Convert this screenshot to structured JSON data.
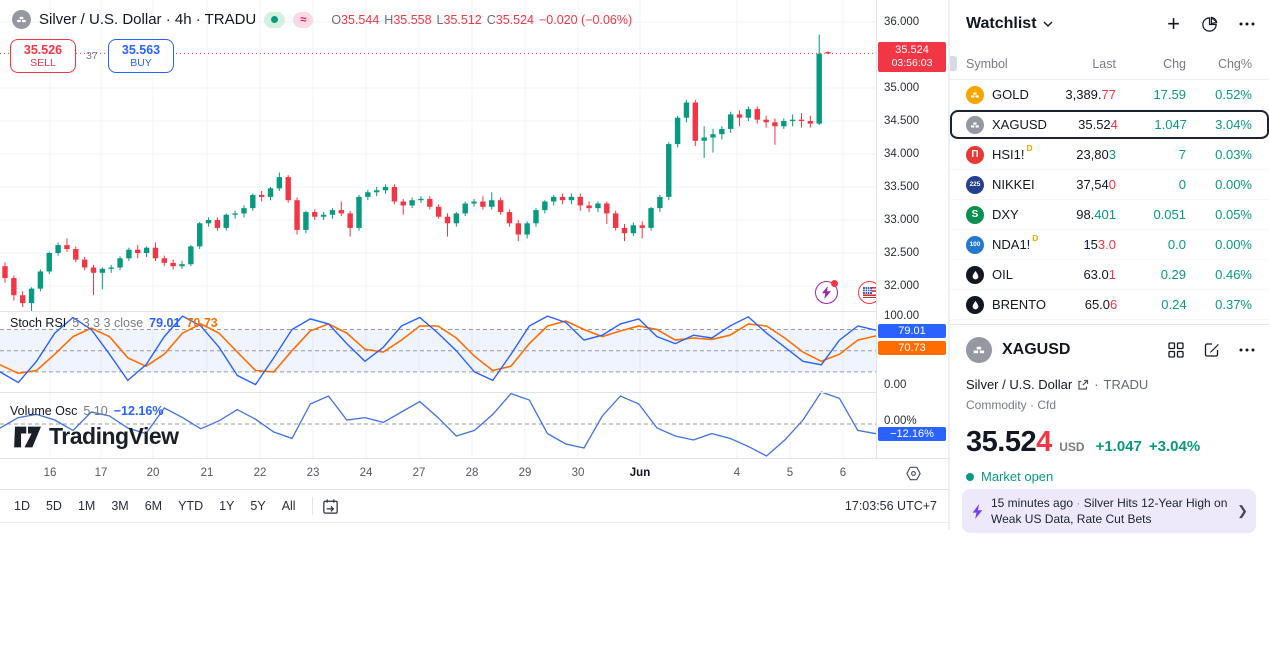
{
  "header": {
    "symbol_title": "Silver / U.S. Dollar · 4h · TRADU",
    "wave_pill": "≈",
    "ohlc": [
      {
        "label": "O",
        "value": "35.544"
      },
      {
        "label": "H",
        "value": "35.558"
      },
      {
        "label": "L",
        "value": "35.512"
      },
      {
        "label": "C",
        "value": "35.524"
      }
    ],
    "change": "−0.020 (−0.06%)"
  },
  "trade": {
    "sell_price": "35.526",
    "sell_label": "SELL",
    "spread": "37",
    "buy_price": "35.563",
    "buy_label": "BUY"
  },
  "indicators": {
    "stoch": {
      "name": "Stoch RSI",
      "params": "5 3 3 3 close",
      "k": "79.01",
      "d": "70.73"
    },
    "volume_osc": {
      "name": "Volume Osc",
      "params": "5 10",
      "value": "−12.16%"
    }
  },
  "price_axis": {
    "current_price": "35.524",
    "countdown": "03:56:03",
    "stoch_high": "100.00",
    "stoch_low": "0.00",
    "k_badge": "79.01",
    "d_badge": "70.73",
    "vol_zero": "0.00%",
    "vol_badge": "−12.16%"
  },
  "toolbar": {
    "ranges": [
      "1D",
      "5D",
      "1M",
      "3M",
      "6M",
      "YTD",
      "1Y",
      "5Y",
      "All"
    ],
    "clock": "17:03:56 UTC+7"
  },
  "watermark": "TradingView",
  "watchlist": {
    "title": "Watchlist",
    "columns": [
      "Symbol",
      "Last",
      "Chg",
      "Chg%"
    ],
    "rows": [
      {
        "symbol": "GOLD",
        "icon": "gold-bars-icon",
        "icon_color": "#f7a600",
        "d_badge": false,
        "last_main": "3,389.",
        "last_tick": "77",
        "tick_dir": "down",
        "chg": "17.59",
        "chg_pct": "0.52%",
        "selected": false
      },
      {
        "symbol": "XAGUSD",
        "icon": "silver-bars-icon",
        "icon_color": "#9598a1",
        "d_badge": false,
        "last_main": "35.52",
        "last_tick": "4",
        "tick_dir": "down",
        "chg": "1.047",
        "chg_pct": "3.04%",
        "selected": true
      },
      {
        "symbol": "HSI1!",
        "icon": "hsi-pillars-icon",
        "icon_color": "#e53935",
        "d_badge": true,
        "last_main": "23,80",
        "last_tick": "3",
        "tick_dir": "up",
        "chg": "7",
        "chg_pct": "0.03%",
        "selected": false
      },
      {
        "symbol": "NIKKEI",
        "icon": "nikkei-225-icon",
        "icon_color": "#24408e",
        "d_badge": false,
        "last_main": "37,54",
        "last_tick": "0",
        "tick_dir": "down",
        "chg": "0",
        "chg_pct": "0.00%",
        "selected": false
      },
      {
        "symbol": "DXY",
        "icon": "dxy-s-icon",
        "icon_color": "#0a9150",
        "d_badge": false,
        "last_main": "98.",
        "last_tick": "401",
        "tick_dir": "up",
        "chg": "0.051",
        "chg_pct": "0.05%",
        "selected": false
      },
      {
        "symbol": "NDA1!",
        "icon": "nda-100-icon",
        "icon_color": "#2479cf",
        "d_badge": true,
        "last_main": "15",
        "last_tick": "3.0",
        "tick_dir": "down",
        "chg": "0.0",
        "chg_pct": "0.00%",
        "selected": false
      },
      {
        "symbol": "OIL",
        "icon": "oil-drop-icon",
        "icon_color": "#131722",
        "d_badge": false,
        "last_main": "63.0",
        "last_tick": "1",
        "tick_dir": "down",
        "chg": "0.29",
        "chg_pct": "0.46%",
        "selected": false
      },
      {
        "symbol": "BRENTO",
        "icon": "oil-drop-icon",
        "icon_color": "#131722",
        "d_badge": false,
        "last_main": "65.0",
        "last_tick": "6",
        "tick_dir": "down",
        "chg": "0.24",
        "chg_pct": "0.37%",
        "selected": false
      }
    ]
  },
  "symbol_info": {
    "name": "XAGUSD",
    "description": "Silver / U.S. Dollar",
    "exchange": "TRADU",
    "type_line": "Commodity · Cfd",
    "price_main": "35.52",
    "price_tick": "4",
    "currency": "USD",
    "change": "+1.047",
    "change_pct": "+3.04%",
    "market_status": "Market open"
  },
  "news": {
    "time": "15 minutes ago",
    "separator": "·",
    "headline": "Silver Hits 12-Year High on Weak US Data, Rate Cut Bets"
  },
  "chart_data": {
    "type": "candlestick",
    "title": "Silver / U.S. Dollar 4h (XAGUSD, TRADU)",
    "price_range": [
      31.6,
      36.0
    ],
    "current_price": 35.524,
    "price_ticks": [
      [
        "36.000",
        22
      ],
      [
        "35.000",
        88
      ],
      [
        "34.500",
        121
      ],
      [
        "34.000",
        154
      ],
      [
        "33.500",
        187
      ],
      [
        "33.000",
        220
      ],
      [
        "32.500",
        253
      ],
      [
        "32.000",
        286
      ]
    ],
    "time_ticks": [
      [
        "16",
        50
      ],
      [
        "17",
        101
      ],
      [
        "20",
        153
      ],
      [
        "21",
        207
      ],
      [
        "22",
        260
      ],
      [
        "23",
        313
      ],
      [
        "24",
        366
      ],
      [
        "27",
        419
      ],
      [
        "28",
        472
      ],
      [
        "29",
        525
      ],
      [
        "30",
        578
      ],
      [
        "Jun",
        640
      ],
      [
        "4",
        737
      ],
      [
        "5",
        790
      ],
      [
        "6",
        843
      ]
    ],
    "colors": {
      "up": "#089981",
      "down": "#f23645",
      "grid": "#f0f3fa",
      "k_line": "#2962ff",
      "d_line": "#ff6d00",
      "band": "rgba(41,98,255,0.07)",
      "price_line": "#f23645"
    },
    "candles_ohlc": [
      [
        32.3,
        32.36,
        32.05,
        32.12
      ],
      [
        32.12,
        32.16,
        31.78,
        31.86
      ],
      [
        31.86,
        31.92,
        31.68,
        31.74
      ],
      [
        31.74,
        31.98,
        31.6,
        31.96
      ],
      [
        31.96,
        32.25,
        31.92,
        32.22
      ],
      [
        32.22,
        32.52,
        32.18,
        32.5
      ],
      [
        32.5,
        32.66,
        32.46,
        32.62
      ],
      [
        32.62,
        32.72,
        32.52,
        32.56
      ],
      [
        32.56,
        32.6,
        32.36,
        32.4
      ],
      [
        32.4,
        32.44,
        32.24,
        32.28
      ],
      [
        32.28,
        32.32,
        31.86,
        32.2
      ],
      [
        32.2,
        32.28,
        31.95,
        32.26
      ],
      [
        32.26,
        32.32,
        32.2,
        32.28
      ],
      [
        32.28,
        32.45,
        32.24,
        32.42
      ],
      [
        32.42,
        32.58,
        32.38,
        32.55
      ],
      [
        32.55,
        32.62,
        32.42,
        32.5
      ],
      [
        32.5,
        32.6,
        32.44,
        32.58
      ],
      [
        32.58,
        32.66,
        32.38,
        32.42
      ],
      [
        32.42,
        32.46,
        32.3,
        32.35
      ],
      [
        32.35,
        32.4,
        32.25,
        32.3
      ],
      [
        32.3,
        32.38,
        32.26,
        32.33
      ],
      [
        32.33,
        32.62,
        32.3,
        32.6
      ],
      [
        32.6,
        32.97,
        32.56,
        32.95
      ],
      [
        32.95,
        33.04,
        32.9,
        33.0
      ],
      [
        33.0,
        33.04,
        32.84,
        32.88
      ],
      [
        32.88,
        33.1,
        32.84,
        33.08
      ],
      [
        33.08,
        33.14,
        33.02,
        33.1
      ],
      [
        33.1,
        33.22,
        33.04,
        33.18
      ],
      [
        33.18,
        33.4,
        33.14,
        33.38
      ],
      [
        33.38,
        33.44,
        33.28,
        33.35
      ],
      [
        33.35,
        33.5,
        33.3,
        33.48
      ],
      [
        33.48,
        33.72,
        33.44,
        33.65
      ],
      [
        33.65,
        33.68,
        33.26,
        33.3
      ],
      [
        33.3,
        33.34,
        32.78,
        32.85
      ],
      [
        32.85,
        33.14,
        32.8,
        33.12
      ],
      [
        33.12,
        33.16,
        33.0,
        33.05
      ],
      [
        33.05,
        33.12,
        33.0,
        33.08
      ],
      [
        33.08,
        33.18,
        33.02,
        33.15
      ],
      [
        33.15,
        33.28,
        33.06,
        33.1
      ],
      [
        33.1,
        33.14,
        32.75,
        32.88
      ],
      [
        32.88,
        33.38,
        32.84,
        33.35
      ],
      [
        33.35,
        33.46,
        33.3,
        33.42
      ],
      [
        33.42,
        33.5,
        33.36,
        33.45
      ],
      [
        33.45,
        33.54,
        33.4,
        33.5
      ],
      [
        33.5,
        33.54,
        33.24,
        33.28
      ],
      [
        33.28,
        33.32,
        33.08,
        33.22
      ],
      [
        33.22,
        33.34,
        33.18,
        33.3
      ],
      [
        33.3,
        33.36,
        33.26,
        33.32
      ],
      [
        33.32,
        33.36,
        33.16,
        33.2
      ],
      [
        33.2,
        33.24,
        33.02,
        33.05
      ],
      [
        33.05,
        33.1,
        32.75,
        32.95
      ],
      [
        32.95,
        33.12,
        32.9,
        33.1
      ],
      [
        33.1,
        33.28,
        33.06,
        33.25
      ],
      [
        33.25,
        33.32,
        33.2,
        33.28
      ],
      [
        33.28,
        33.36,
        33.16,
        33.2
      ],
      [
        33.2,
        33.42,
        33.16,
        33.3
      ],
      [
        33.3,
        33.34,
        33.08,
        33.12
      ],
      [
        33.12,
        33.16,
        32.9,
        32.95
      ],
      [
        32.95,
        33.0,
        32.68,
        32.78
      ],
      [
        32.78,
        32.98,
        32.72,
        32.95
      ],
      [
        32.95,
        33.18,
        32.9,
        33.15
      ],
      [
        33.15,
        33.3,
        33.1,
        33.28
      ],
      [
        33.28,
        33.38,
        33.22,
        33.35
      ],
      [
        33.35,
        33.4,
        33.24,
        33.3
      ],
      [
        33.3,
        33.4,
        33.24,
        33.35
      ],
      [
        33.35,
        33.4,
        33.14,
        33.22
      ],
      [
        33.22,
        33.28,
        33.12,
        33.18
      ],
      [
        33.18,
        33.28,
        33.12,
        33.25
      ],
      [
        33.25,
        33.28,
        32.94,
        33.1
      ],
      [
        33.1,
        33.14,
        32.84,
        32.88
      ],
      [
        32.88,
        32.94,
        32.68,
        32.8
      ],
      [
        32.8,
        32.96,
        32.76,
        32.92
      ],
      [
        32.92,
        32.98,
        32.72,
        32.88
      ],
      [
        32.88,
        33.2,
        32.84,
        33.18
      ],
      [
        33.18,
        33.38,
        33.12,
        33.35
      ],
      [
        33.35,
        34.18,
        33.3,
        34.15
      ],
      [
        34.15,
        34.58,
        34.1,
        34.55
      ],
      [
        34.55,
        34.82,
        34.48,
        34.78
      ],
      [
        34.78,
        34.82,
        34.12,
        34.2
      ],
      [
        34.2,
        34.42,
        33.94,
        34.25
      ],
      [
        34.25,
        34.38,
        34.02,
        34.3
      ],
      [
        34.3,
        34.42,
        34.22,
        34.38
      ],
      [
        34.38,
        34.64,
        34.32,
        34.6
      ],
      [
        34.6,
        34.66,
        34.42,
        34.55
      ],
      [
        34.55,
        34.72,
        34.5,
        34.68
      ],
      [
        34.68,
        34.72,
        34.46,
        34.52
      ],
      [
        34.52,
        34.58,
        34.4,
        34.48
      ],
      [
        34.48,
        34.54,
        34.14,
        34.42
      ],
      [
        34.42,
        34.54,
        34.38,
        34.5
      ],
      [
        34.5,
        34.6,
        34.42,
        34.52
      ],
      [
        34.52,
        34.62,
        34.4,
        34.5
      ],
      [
        34.5,
        34.58,
        34.4,
        34.46
      ],
      [
        34.46,
        35.81,
        34.44,
        35.52
      ],
      [
        35.544,
        35.558,
        35.512,
        35.524
      ]
    ],
    "stoch_rsi": {
      "levels": [
        80,
        50,
        20
      ],
      "k_series": [
        20,
        5,
        35,
        75,
        97,
        80,
        45,
        8,
        30,
        70,
        99,
        85,
        55,
        15,
        2,
        40,
        80,
        95,
        88,
        60,
        35,
        55,
        85,
        97,
        75,
        50,
        20,
        8,
        45,
        85,
        99,
        90,
        65,
        72,
        88,
        95,
        70,
        60,
        72,
        68,
        85,
        98,
        75,
        55,
        35,
        30,
        65,
        85,
        79
      ],
      "d_series": [
        30,
        18,
        22,
        45,
        70,
        82,
        70,
        40,
        28,
        45,
        75,
        88,
        75,
        48,
        22,
        20,
        50,
        78,
        88,
        75,
        52,
        48,
        65,
        85,
        85,
        68,
        42,
        22,
        28,
        60,
        85,
        92,
        80,
        70,
        78,
        85,
        80,
        65,
        68,
        66,
        72,
        88,
        85,
        68,
        48,
        35,
        45,
        65,
        71
      ],
      "last_k": 79.01,
      "last_d": 70.73
    },
    "volume_osc": {
      "series": [
        -5,
        8,
        12,
        5,
        -8,
        15,
        10,
        -5,
        -12,
        20,
        8,
        -6,
        4,
        18,
        6,
        -10,
        -18,
        25,
        35,
        5,
        8,
        2,
        15,
        28,
        8,
        -15,
        -8,
        12,
        38,
        30,
        -12,
        -25,
        -30,
        10,
        35,
        25,
        -5,
        -15,
        -20,
        -12,
        -18,
        -28,
        -40,
        -20,
        5,
        40,
        32,
        -8,
        -12.16
      ],
      "last": -12.16
    }
  }
}
